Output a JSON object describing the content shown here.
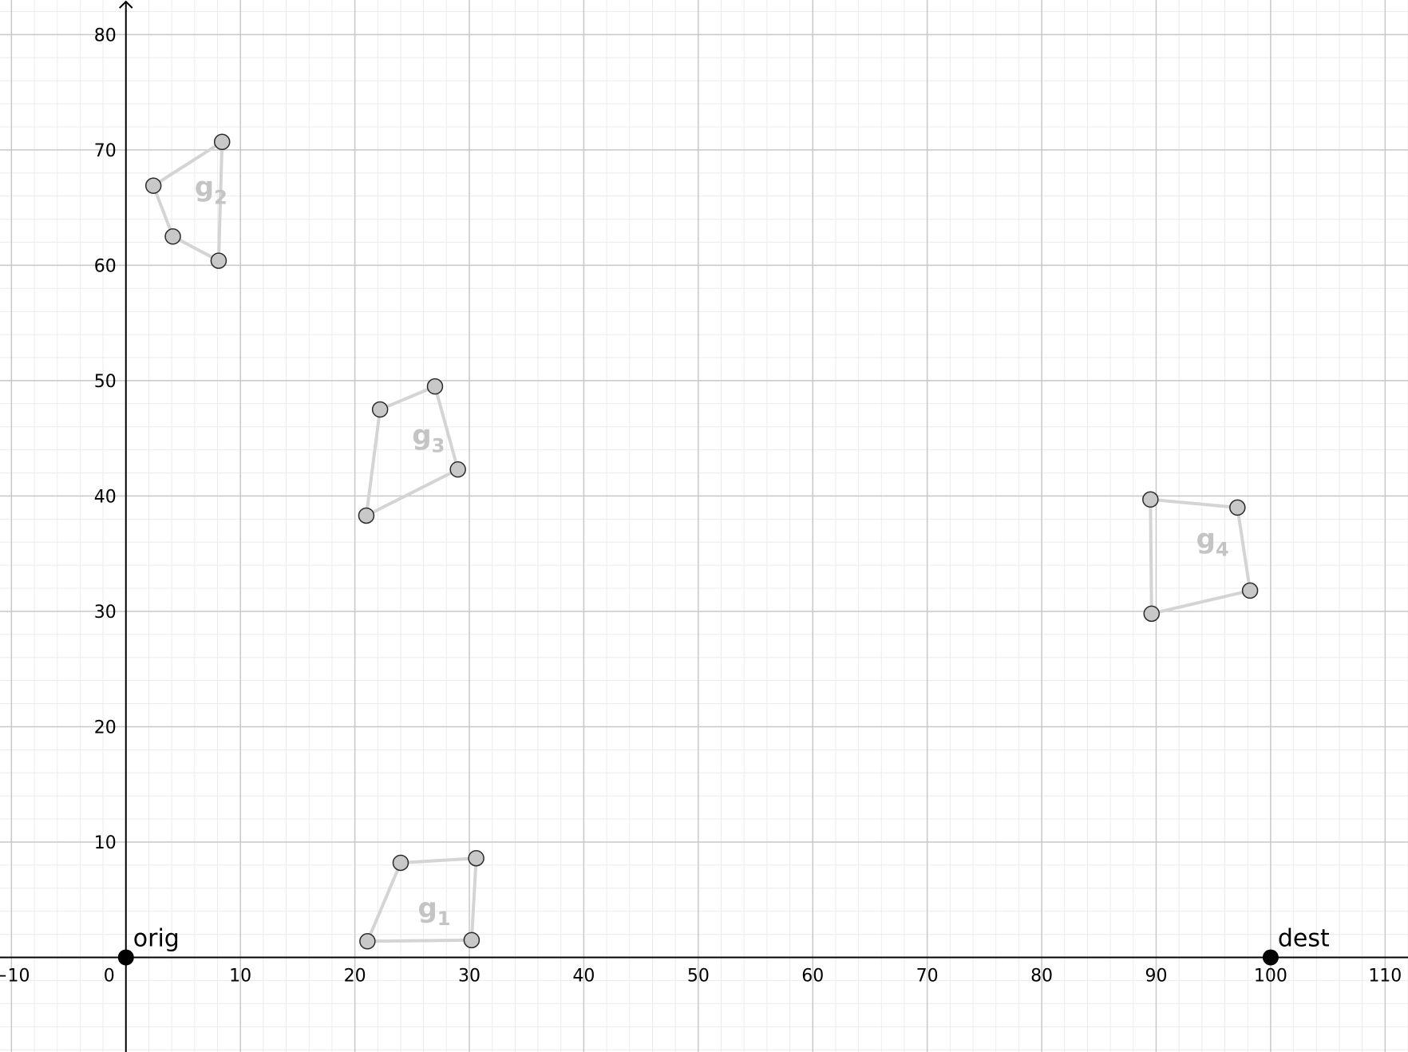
{
  "chart_data": {
    "type": "scatter",
    "xlim": [
      -11,
      112
    ],
    "ylim": [
      -8.2,
      83
    ],
    "x_ticks": [
      -10,
      0,
      10,
      20,
      30,
      40,
      50,
      60,
      70,
      80,
      90,
      100,
      110
    ],
    "y_ticks": [
      10,
      20,
      30,
      40,
      50,
      60,
      70,
      80
    ],
    "major_grid": 10,
    "minor_grid": 2,
    "grid": true,
    "colors": {
      "major_grid": "#c8c8c8",
      "minor_grid": "#ececec",
      "axis": "#000000",
      "polygon_edge": "#d4d4d4",
      "vertex_fill": "#c8c8c8",
      "vertex_stroke": "#2a2a2a",
      "point_fill": "#000000",
      "polygon_label": "#c4c4c4"
    },
    "points": [
      {
        "label": "orig",
        "x": 0,
        "y": 0
      },
      {
        "label": "dest",
        "x": 100,
        "y": 0
      }
    ],
    "polygons": [
      {
        "base": "g",
        "sub": "1",
        "label_pos": [
          25.5,
          3.5
        ],
        "vertices": [
          [
            21.1,
            1.4
          ],
          [
            24.0,
            8.2
          ],
          [
            30.6,
            8.6
          ],
          [
            30.2,
            1.5
          ]
        ]
      },
      {
        "base": "g",
        "sub": "2",
        "label_pos": [
          6.0,
          66.0
        ],
        "vertices": [
          [
            2.4,
            66.9
          ],
          [
            8.4,
            70.7
          ],
          [
            8.1,
            60.4
          ],
          [
            4.1,
            62.5
          ]
        ]
      },
      {
        "base": "g",
        "sub": "3",
        "label_pos": [
          25.0,
          44.5
        ],
        "vertices": [
          [
            22.2,
            47.5
          ],
          [
            27.0,
            49.5
          ],
          [
            29.0,
            42.3
          ],
          [
            21.0,
            38.3
          ]
        ]
      },
      {
        "base": "g",
        "sub": "4",
        "label_pos": [
          93.5,
          35.5
        ],
        "vertices": [
          [
            89.5,
            39.7
          ],
          [
            97.1,
            39.0
          ],
          [
            98.2,
            31.8
          ],
          [
            89.6,
            29.8
          ]
        ]
      }
    ]
  }
}
